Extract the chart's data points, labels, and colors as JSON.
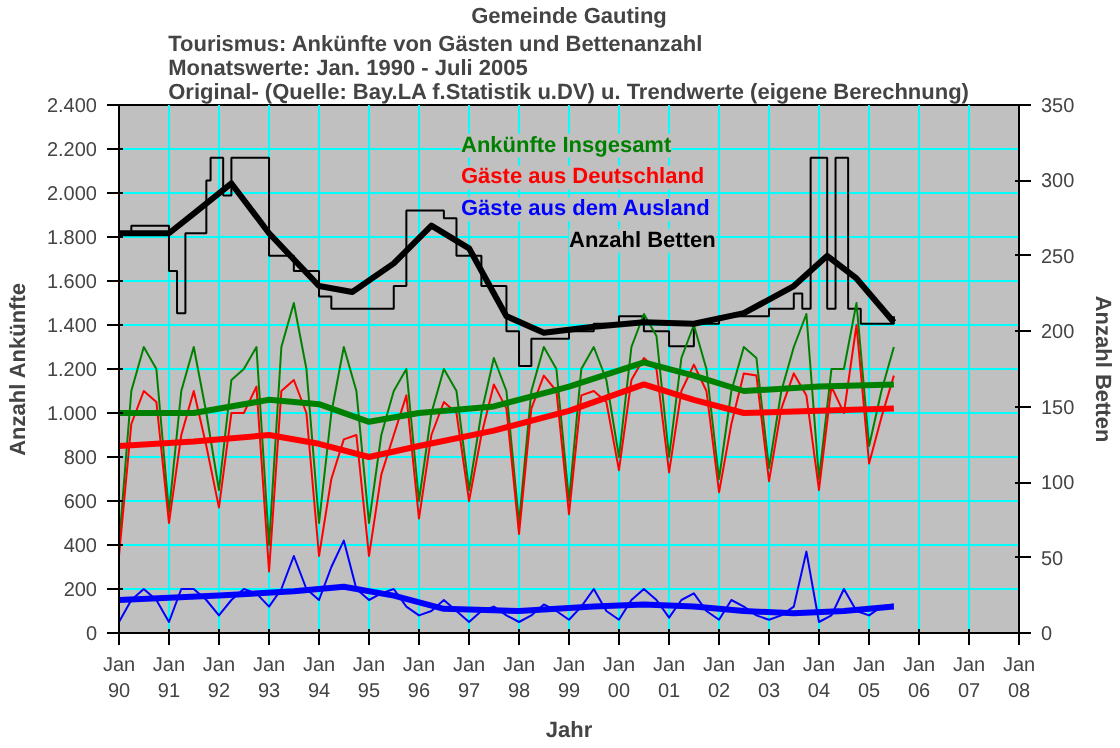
{
  "chart_data": {
    "type": "line",
    "title": "Gemeinde Gauting",
    "subtitle": "Tourismus: Ankünfte von Gästen und Bettenanzahl\nMonatswerte: Jan. 1990 - Juli 2005\nOriginal- (Quelle: Bay.LA f.Statistik u.DV) u. Trendwerte (eigene Berechnung)",
    "xlabel": "Jahr",
    "ylabel": "Anzahl Ankünfte",
    "y2label": "Anzahl Betten",
    "legend": false,
    "grid": true,
    "xlim": [
      "1990-01",
      "2008-01"
    ],
    "xticks": [
      {
        "value": "1990-01",
        "label": "Jan\n90"
      },
      {
        "value": "1991-01",
        "label": "Jan\n91"
      },
      {
        "value": "1992-01",
        "label": "Jan\n92"
      },
      {
        "value": "1993-01",
        "label": "Jan\n93"
      },
      {
        "value": "1994-01",
        "label": "Jan\n94"
      },
      {
        "value": "1995-01",
        "label": "Jan\n95"
      },
      {
        "value": "1996-01",
        "label": "Jan\n96"
      },
      {
        "value": "1997-01",
        "label": "Jan\n97"
      },
      {
        "value": "1998-01",
        "label": "Jan\n98"
      },
      {
        "value": "1999-01",
        "label": "Jan\n99"
      },
      {
        "value": "2000-01",
        "label": "Jan\n00"
      },
      {
        "value": "2001-01",
        "label": "Jan\n01"
      },
      {
        "value": "2002-01",
        "label": "Jan\n02"
      },
      {
        "value": "2003-01",
        "label": "Jan\n03"
      },
      {
        "value": "2004-01",
        "label": "Jan\n04"
      },
      {
        "value": "2005-01",
        "label": "Jan\n05"
      },
      {
        "value": "2006-01",
        "label": "Jan\n06"
      },
      {
        "value": "2007-01",
        "label": "Jan\n07"
      },
      {
        "value": "2008-01",
        "label": "Jan\n08"
      }
    ],
    "ylim": [
      0,
      2400
    ],
    "yticks": [
      0,
      200,
      400,
      600,
      800,
      {
        "value": 1000,
        "label": "1.000"
      },
      {
        "value": 1200,
        "label": "1.200"
      },
      {
        "value": 1400,
        "label": "1.400"
      },
      {
        "value": 1600,
        "label": "1.600"
      },
      {
        "value": 1800,
        "label": "1.800"
      },
      {
        "value": 2000,
        "label": "2.000"
      },
      {
        "value": 2200,
        "label": "2.200"
      },
      {
        "value": 2400,
        "label": "2.400"
      }
    ],
    "y2lim": [
      0,
      350
    ],
    "y2ticks": [
      0,
      50,
      100,
      150,
      200,
      250,
      300,
      350
    ],
    "series": [
      {
        "name": "Anzahl Betten",
        "type": "step",
        "axis": "y2",
        "color": "#000000",
        "x": [
          "1990-01",
          "1990-04",
          "1991-01",
          "1991-03",
          "1991-05",
          "1991-10",
          "1991-11",
          "1992-02",
          "1992-04",
          "1993-01",
          "1993-07",
          "1994-01",
          "1994-04",
          "1995-01",
          "1995-07",
          "1995-10",
          "1996-07",
          "1996-10",
          "1997-04",
          "1997-10",
          "1998-01",
          "1998-04",
          "1999-01",
          "1999-07",
          "2000-01",
          "2000-07",
          "2001-01",
          "2001-07",
          "2002-01",
          "2002-07",
          "2003-01",
          "2003-07",
          "2003-09",
          "2003-11",
          "2004-03",
          "2004-05",
          "2004-08",
          "2004-11",
          "2005-07"
        ],
        "values": [
          265,
          270,
          240,
          212,
          265,
          300,
          315,
          290,
          315,
          250,
          240,
          223,
          215,
          215,
          230,
          280,
          275,
          250,
          230,
          200,
          177,
          195,
          200,
          205,
          210,
          200,
          190,
          205,
          210,
          210,
          215,
          225,
          215,
          315,
          215,
          315,
          215,
          205,
          210
        ]
      },
      {
        "name": "Ankünfte Insgesamt",
        "color": "#008000",
        "x": [
          "1990-01",
          "1990-04",
          "1990-07",
          "1990-10",
          "1991-01",
          "1991-04",
          "1991-07",
          "1991-10",
          "1992-01",
          "1992-04",
          "1992-07",
          "1992-10",
          "1993-01",
          "1993-04",
          "1993-07",
          "1993-10",
          "1994-01",
          "1994-04",
          "1994-07",
          "1994-10",
          "1995-01",
          "1995-04",
          "1995-07",
          "1995-10",
          "1996-01",
          "1996-04",
          "1996-07",
          "1996-10",
          "1997-01",
          "1997-04",
          "1997-07",
          "1997-10",
          "1998-01",
          "1998-04",
          "1998-07",
          "1998-10",
          "1999-01",
          "1999-04",
          "1999-07",
          "1999-10",
          "2000-01",
          "2000-04",
          "2000-07",
          "2000-10",
          "2001-01",
          "2001-04",
          "2001-07",
          "2001-10",
          "2002-01",
          "2002-04",
          "2002-07",
          "2002-10",
          "2003-01",
          "2003-04",
          "2003-07",
          "2003-10",
          "2004-01",
          "2004-04",
          "2004-07",
          "2004-10",
          "2005-01",
          "2005-04",
          "2005-07"
        ],
        "values": [
          400,
          1100,
          1300,
          1200,
          550,
          1100,
          1300,
          1000,
          650,
          1150,
          1200,
          1300,
          400,
          1300,
          1500,
          1200,
          500,
          1000,
          1300,
          1100,
          500,
          900,
          1100,
          1200,
          600,
          1000,
          1200,
          1100,
          650,
          1000,
          1250,
          1100,
          500,
          1100,
          1300,
          1200,
          600,
          1200,
          1300,
          1150,
          800,
          1300,
          1450,
          1350,
          800,
          1250,
          1400,
          1200,
          700,
          1100,
          1300,
          1250,
          750,
          1100,
          1300,
          1450,
          700,
          1200,
          1200,
          1500,
          850,
          1100,
          1300
        ]
      },
      {
        "name": "Gäste aus Deutschland",
        "color": "#ff0000",
        "x": [
          "1990-01",
          "1990-04",
          "1990-07",
          "1990-10",
          "1991-01",
          "1991-04",
          "1991-07",
          "1991-10",
          "1992-01",
          "1992-04",
          "1992-07",
          "1992-10",
          "1993-01",
          "1993-04",
          "1993-07",
          "1993-10",
          "1994-01",
          "1994-04",
          "1994-07",
          "1994-10",
          "1995-01",
          "1995-04",
          "1995-07",
          "1995-10",
          "1996-01",
          "1996-04",
          "1996-07",
          "1996-10",
          "1997-01",
          "1997-04",
          "1997-07",
          "1997-10",
          "1998-01",
          "1998-04",
          "1998-07",
          "1998-10",
          "1999-01",
          "1999-04",
          "1999-07",
          "1999-10",
          "2000-01",
          "2000-04",
          "2000-07",
          "2000-10",
          "2001-01",
          "2001-04",
          "2001-07",
          "2001-10",
          "2002-01",
          "2002-04",
          "2002-07",
          "2002-10",
          "2003-01",
          "2003-04",
          "2003-07",
          "2003-10",
          "2004-01",
          "2004-04",
          "2004-07",
          "2004-10",
          "2005-01",
          "2005-04",
          "2005-07"
        ],
        "values": [
          350,
          950,
          1100,
          1050,
          500,
          900,
          1100,
          850,
          570,
          1000,
          1000,
          1120,
          280,
          1100,
          1150,
          1000,
          350,
          700,
          880,
          900,
          350,
          720,
          900,
          1080,
          520,
          900,
          1050,
          1000,
          600,
          900,
          1130,
          1020,
          450,
          1020,
          1170,
          1100,
          540,
          1080,
          1100,
          1050,
          740,
          1150,
          1250,
          1200,
          730,
          1100,
          1220,
          1100,
          640,
          950,
          1180,
          1170,
          690,
          1020,
          1180,
          1080,
          650,
          1120,
          1000,
          1400,
          770,
          980,
          1170
        ]
      },
      {
        "name": "Gäste aus dem Ausland",
        "color": "#0000ff",
        "x": [
          "1990-01",
          "1990-04",
          "1990-07",
          "1990-10",
          "1991-01",
          "1991-04",
          "1991-07",
          "1991-10",
          "1992-01",
          "1992-04",
          "1992-07",
          "1992-10",
          "1993-01",
          "1993-04",
          "1993-07",
          "1993-10",
          "1994-01",
          "1994-04",
          "1994-07",
          "1994-10",
          "1995-01",
          "1995-04",
          "1995-07",
          "1995-10",
          "1996-01",
          "1996-04",
          "1996-07",
          "1996-10",
          "1997-01",
          "1997-04",
          "1997-07",
          "1997-10",
          "1998-01",
          "1998-04",
          "1998-07",
          "1998-10",
          "1999-01",
          "1999-04",
          "1999-07",
          "1999-10",
          "2000-01",
          "2000-04",
          "2000-07",
          "2000-10",
          "2001-01",
          "2001-04",
          "2001-07",
          "2001-10",
          "2002-01",
          "2002-04",
          "2002-07",
          "2002-10",
          "2003-01",
          "2003-04",
          "2003-07",
          "2003-10",
          "2004-01",
          "2004-04",
          "2004-07",
          "2004-10",
          "2005-01",
          "2005-04",
          "2005-07"
        ],
        "values": [
          50,
          150,
          200,
          150,
          50,
          200,
          200,
          150,
          80,
          150,
          200,
          180,
          120,
          200,
          350,
          200,
          150,
          300,
          420,
          200,
          150,
          180,
          200,
          120,
          80,
          100,
          150,
          100,
          50,
          100,
          120,
          80,
          50,
          80,
          130,
          100,
          60,
          120,
          200,
          100,
          60,
          150,
          200,
          150,
          70,
          150,
          180,
          100,
          60,
          150,
          120,
          80,
          60,
          80,
          120,
          370,
          50,
          80,
          200,
          100,
          80,
          120,
          130
        ]
      },
      {
        "color": "#000000",
        "axis": "y2",
        "x": [
          "1990-01",
          "1991-01",
          "1991-07",
          "1992-04",
          "1993-01",
          "1994-01",
          "1994-09",
          "1995-07",
          "1996-04",
          "1997-01",
          "1997-10",
          "1998-07",
          "1999-07",
          "2000-07",
          "2001-07",
          "2002-07",
          "2003-07",
          "2004-03",
          "2004-10",
          "2005-07"
        ],
        "values": [
          265,
          265,
          278,
          298,
          265,
          230,
          226,
          245,
          270,
          255,
          210,
          199,
          203,
          206,
          205,
          212,
          230,
          250,
          235,
          206
        ]
      },
      {
        "color": "#008000",
        "x": [
          "1990-01",
          "1991-07",
          "1993-01",
          "1994-01",
          "1995-01",
          "1996-01",
          "1997-07",
          "1999-01",
          "2000-07",
          "2001-07",
          "2002-07",
          "2004-01",
          "2005-07"
        ],
        "values": [
          1000,
          1000,
          1060,
          1040,
          960,
          1000,
          1030,
          1120,
          1230,
          1170,
          1100,
          1120,
          1130
        ]
      },
      {
        "color": "#ff0000",
        "x": [
          "1990-01",
          "1991-07",
          "1993-01",
          "1994-01",
          "1995-01",
          "1996-01",
          "1997-07",
          "1999-01",
          "2000-07",
          "2001-07",
          "2002-07",
          "2004-01",
          "2005-07"
        ],
        "values": [
          850,
          870,
          900,
          860,
          800,
          850,
          920,
          1010,
          1130,
          1060,
          1000,
          1010,
          1020
        ]
      },
      {
        "color": "#0000ff",
        "x": [
          "1990-01",
          "1992-01",
          "1993-07",
          "1994-07",
          "1995-07",
          "1996-07",
          "1998-01",
          "1999-07",
          "2000-07",
          "2001-07",
          "2002-07",
          "2003-07",
          "2004-07",
          "2005-07"
        ],
        "values": [
          150,
          170,
          190,
          210,
          170,
          110,
          100,
          120,
          130,
          120,
          100,
          90,
          100,
          120
        ]
      }
    ]
  }
}
